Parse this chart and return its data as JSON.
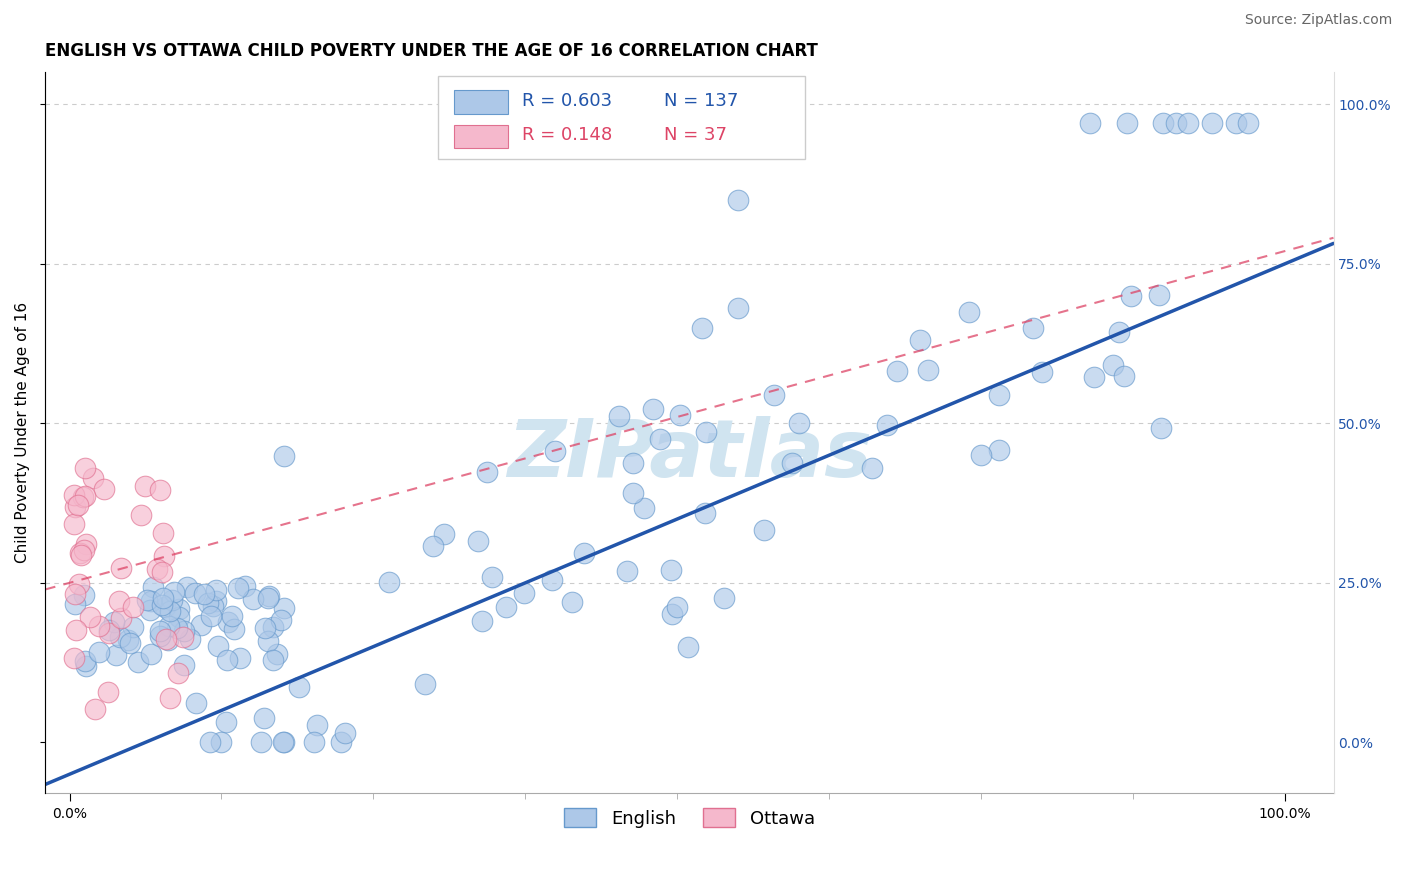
{
  "title": "ENGLISH VS OTTAWA CHILD POVERTY UNDER THE AGE OF 16 CORRELATION CHART",
  "source": "Source: ZipAtlas.com",
  "ylabel": "Child Poverty Under the Age of 16",
  "english_R": "0.603",
  "english_N": "137",
  "ottawa_R": "0.148",
  "ottawa_N": "37",
  "english_color": "#adc8e8",
  "english_edge": "#6699cc",
  "ottawa_color": "#f5b8cc",
  "ottawa_edge": "#e07090",
  "english_line_color": "#2255aa",
  "ottawa_line_color": "#dd4466",
  "watermark_color": "#d0e4f0",
  "background_color": "#ffffff",
  "grid_color": "#cccccc",
  "title_fontsize": 12,
  "axis_label_fontsize": 11,
  "tick_label_fontsize": 10,
  "legend_fontsize": 12,
  "source_fontsize": 10,
  "right_tick_color": "#2255aa"
}
